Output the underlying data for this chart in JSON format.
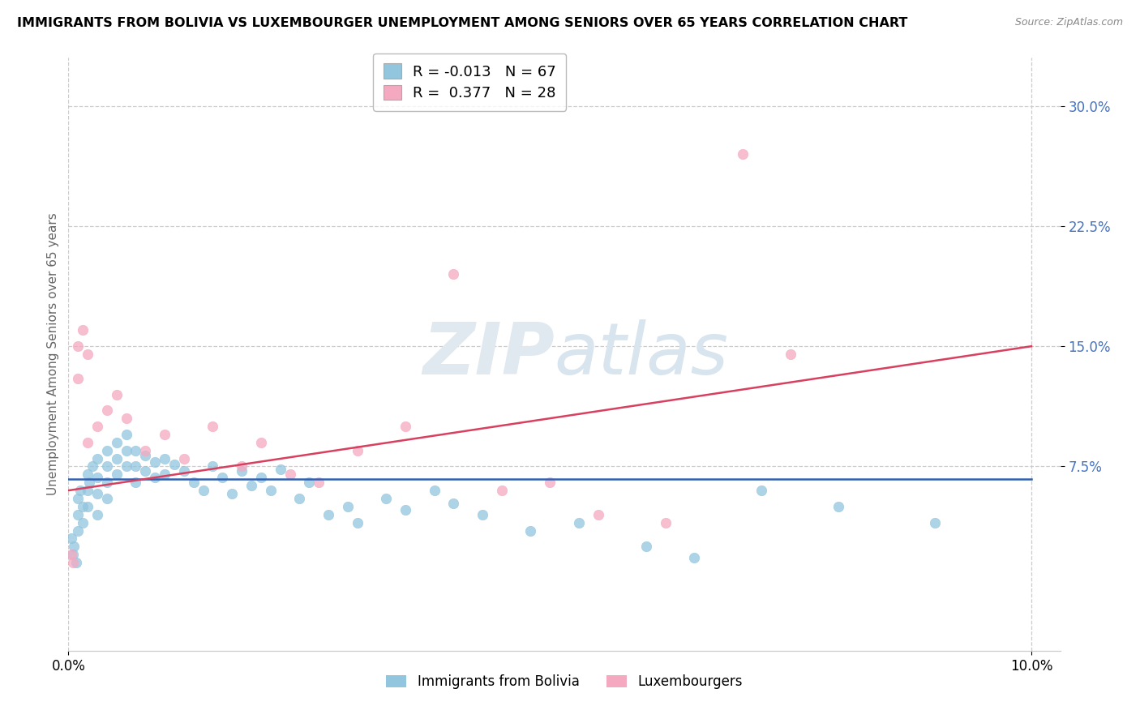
{
  "title": "IMMIGRANTS FROM BOLIVIA VS LUXEMBOURGER UNEMPLOYMENT AMONG SENIORS OVER 65 YEARS CORRELATION CHART",
  "source": "Source: ZipAtlas.com",
  "ylabel": "Unemployment Among Seniors over 65 years",
  "ytick_labels": [
    "7.5%",
    "15.0%",
    "22.5%",
    "30.0%"
  ],
  "ytick_values": [
    0.075,
    0.15,
    0.225,
    0.3
  ],
  "xlim": [
    0.0,
    0.103
  ],
  "ylim": [
    -0.04,
    0.33
  ],
  "legend_r_bolivia": "-0.013",
  "legend_n_bolivia": "67",
  "legend_r_luxembourger": "0.377",
  "legend_n_luxembourger": "28",
  "bolivia_color": "#92c5de",
  "luxembourger_color": "#f4a9c0",
  "bolivia_line_color": "#3060b0",
  "luxembourger_line_color": "#d84060",
  "bolivia_line_y0": 0.067,
  "bolivia_line_y1": 0.067,
  "luxembourger_line_y0": 0.06,
  "luxembourger_line_y1": 0.15,
  "bolivia_scatter_x": [
    0.0003,
    0.0005,
    0.0006,
    0.0008,
    0.001,
    0.001,
    0.001,
    0.0012,
    0.0015,
    0.0015,
    0.002,
    0.002,
    0.002,
    0.0022,
    0.0025,
    0.003,
    0.003,
    0.003,
    0.003,
    0.004,
    0.004,
    0.004,
    0.004,
    0.005,
    0.005,
    0.005,
    0.006,
    0.006,
    0.006,
    0.007,
    0.007,
    0.007,
    0.008,
    0.008,
    0.009,
    0.009,
    0.01,
    0.01,
    0.011,
    0.012,
    0.013,
    0.014,
    0.015,
    0.016,
    0.017,
    0.018,
    0.019,
    0.02,
    0.021,
    0.022,
    0.024,
    0.025,
    0.027,
    0.029,
    0.03,
    0.033,
    0.035,
    0.038,
    0.04,
    0.043,
    0.048,
    0.053,
    0.06,
    0.065,
    0.072,
    0.08,
    0.09
  ],
  "bolivia_scatter_y": [
    0.03,
    0.02,
    0.025,
    0.015,
    0.055,
    0.045,
    0.035,
    0.06,
    0.04,
    0.05,
    0.07,
    0.06,
    0.05,
    0.065,
    0.075,
    0.08,
    0.068,
    0.058,
    0.045,
    0.085,
    0.075,
    0.065,
    0.055,
    0.09,
    0.08,
    0.07,
    0.095,
    0.085,
    0.075,
    0.085,
    0.075,
    0.065,
    0.082,
    0.072,
    0.078,
    0.068,
    0.08,
    0.07,
    0.076,
    0.072,
    0.065,
    0.06,
    0.075,
    0.068,
    0.058,
    0.072,
    0.063,
    0.068,
    0.06,
    0.073,
    0.055,
    0.065,
    0.045,
    0.05,
    0.04,
    0.055,
    0.048,
    0.06,
    0.052,
    0.045,
    0.035,
    0.04,
    0.025,
    0.018,
    0.06,
    0.05,
    0.04
  ],
  "luxembourger_scatter_x": [
    0.0003,
    0.0005,
    0.001,
    0.001,
    0.0015,
    0.002,
    0.002,
    0.003,
    0.004,
    0.005,
    0.006,
    0.008,
    0.01,
    0.012,
    0.015,
    0.018,
    0.02,
    0.023,
    0.026,
    0.03,
    0.035,
    0.04,
    0.045,
    0.05,
    0.055,
    0.062,
    0.07,
    0.075
  ],
  "luxembourger_scatter_y": [
    0.02,
    0.015,
    0.15,
    0.13,
    0.16,
    0.145,
    0.09,
    0.1,
    0.11,
    0.12,
    0.105,
    0.085,
    0.095,
    0.08,
    0.1,
    0.075,
    0.09,
    0.07,
    0.065,
    0.085,
    0.1,
    0.195,
    0.06,
    0.065,
    0.045,
    0.04,
    0.27,
    0.145
  ]
}
